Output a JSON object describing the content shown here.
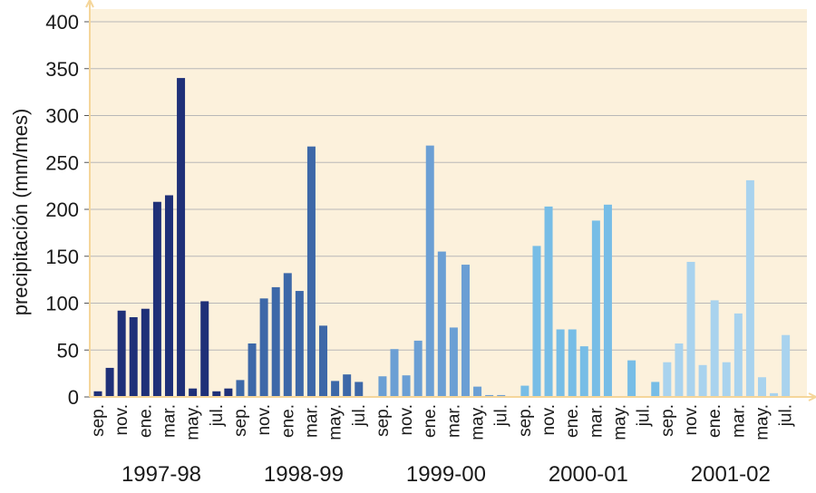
{
  "chart_data": {
    "type": "bar",
    "title": "",
    "xlabel": "",
    "ylabel": "precipitación (mm/mes)",
    "ylim": [
      0,
      400
    ],
    "yticks": [
      0,
      50,
      100,
      150,
      200,
      250,
      300,
      350,
      400
    ],
    "grid": true,
    "colors": {
      "plot_background": "#fcf1dc",
      "gridline": "#b8b8b8",
      "axis": "#f5d69a"
    },
    "tick_labels": [
      "sep.",
      "nov.",
      "ene.",
      "mar.",
      "may.",
      "jul."
    ],
    "series": [
      {
        "label": "1997-98",
        "color": "#1f3078",
        "values": [
          6,
          31,
          92,
          85,
          94,
          208,
          215,
          340,
          9,
          102,
          6,
          9
        ]
      },
      {
        "label": "1998-99",
        "color": "#3d68a8",
        "values": [
          18,
          57,
          105,
          117,
          132,
          113,
          267,
          76,
          17,
          24,
          16,
          0
        ]
      },
      {
        "label": "1999-00",
        "color": "#6b9fd4",
        "values": [
          22,
          51,
          23,
          60,
          268,
          155,
          74,
          141,
          11,
          2,
          2,
          0
        ]
      },
      {
        "label": "2000-01",
        "color": "#77bde6",
        "values": [
          12,
          161,
          203,
          72,
          72,
          54,
          188,
          205,
          0,
          39,
          0,
          16
        ]
      },
      {
        "label": "2001-02",
        "color": "#a9d3ee",
        "values": [
          37,
          57,
          144,
          34,
          103,
          37,
          89,
          231,
          21,
          4,
          66,
          0
        ]
      }
    ]
  }
}
